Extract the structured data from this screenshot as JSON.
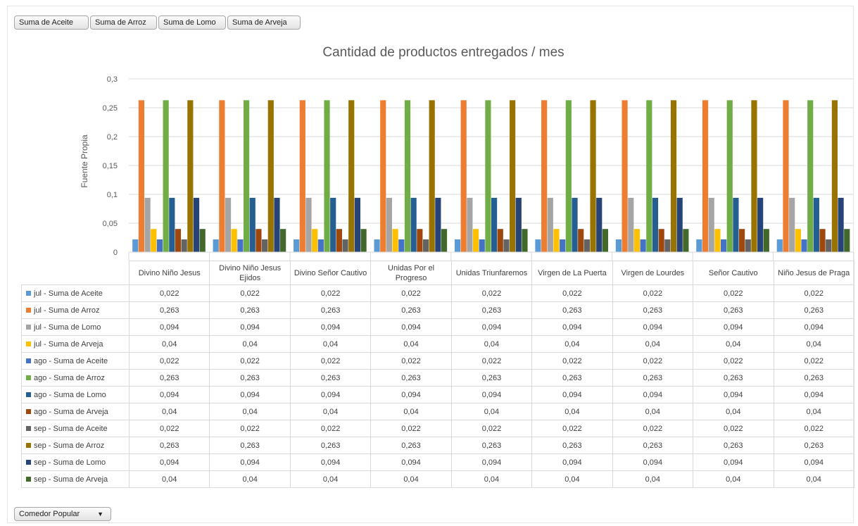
{
  "field_buttons": [
    "Suma de Aceite",
    "Suma de Arroz",
    "Suma de Lomo",
    "Suma de Arveja"
  ],
  "filter": {
    "label": "Comedor Popular",
    "icon": "dropdown-arrow-icon"
  },
  "chart_data": {
    "type": "bar",
    "title": "Cantidad de productos entregados / mes",
    "ylabel": "Fuente Propia",
    "xlabel": "",
    "ylim": [
      0,
      0.3
    ],
    "yticks": [
      "0",
      "0,05",
      "0,1",
      "0,15",
      "0,2",
      "0,25",
      "0,3"
    ],
    "grid": true,
    "legend": "data-table",
    "categories": [
      "Divino Niño Jesus",
      "Divino Niño Jesus Ejidos",
      "Divino Señor Cautivo",
      "Unidas Por el Progreso",
      "Unidas Triunfaremos",
      "Virgen de La Puerta",
      "Virgen de Lourdes",
      "Señor Cautivo",
      "Niño Jesus de Praga"
    ],
    "series": [
      {
        "name": "jul - Suma de Aceite",
        "color": "#5b9bd5",
        "values": [
          0.022,
          0.022,
          0.022,
          0.022,
          0.022,
          0.022,
          0.022,
          0.022,
          0.022
        ],
        "labels": [
          "0,022",
          "0,022",
          "0,022",
          "0,022",
          "0,022",
          "0,022",
          "0,022",
          "0,022",
          "0,022"
        ]
      },
      {
        "name": "jul - Suma de Arroz",
        "color": "#ed7d31",
        "values": [
          0.263,
          0.263,
          0.263,
          0.263,
          0.263,
          0.263,
          0.263,
          0.263,
          0.263
        ],
        "labels": [
          "0,263",
          "0,263",
          "0,263",
          "0,263",
          "0,263",
          "0,263",
          "0,263",
          "0,263",
          "0,263"
        ]
      },
      {
        "name": "jul - Suma de Lomo",
        "color": "#a5a5a5",
        "values": [
          0.094,
          0.094,
          0.094,
          0.094,
          0.094,
          0.094,
          0.094,
          0.094,
          0.094
        ],
        "labels": [
          "0,094",
          "0,094",
          "0,094",
          "0,094",
          "0,094",
          "0,094",
          "0,094",
          "0,094",
          "0,094"
        ]
      },
      {
        "name": "jul - Suma de Arveja",
        "color": "#ffc000",
        "values": [
          0.04,
          0.04,
          0.04,
          0.04,
          0.04,
          0.04,
          0.04,
          0.04,
          0.04
        ],
        "labels": [
          "0,04",
          "0,04",
          "0,04",
          "0,04",
          "0,04",
          "0,04",
          "0,04",
          "0,04",
          "0,04"
        ]
      },
      {
        "name": "ago - Suma de Aceite",
        "color": "#4472c4",
        "values": [
          0.022,
          0.022,
          0.022,
          0.022,
          0.022,
          0.022,
          0.022,
          0.022,
          0.022
        ],
        "labels": [
          "0,022",
          "0,022",
          "0,022",
          "0,022",
          "0,022",
          "0,022",
          "0,022",
          "0,022",
          "0,022"
        ]
      },
      {
        "name": "ago - Suma de Arroz",
        "color": "#70ad47",
        "values": [
          0.263,
          0.263,
          0.263,
          0.263,
          0.263,
          0.263,
          0.263,
          0.263,
          0.263
        ],
        "labels": [
          "0,263",
          "0,263",
          "0,263",
          "0,263",
          "0,263",
          "0,263",
          "0,263",
          "0,263",
          "0,263"
        ]
      },
      {
        "name": "ago - Suma de Lomo",
        "color": "#255e91",
        "values": [
          0.094,
          0.094,
          0.094,
          0.094,
          0.094,
          0.094,
          0.094,
          0.094,
          0.094
        ],
        "labels": [
          "0,094",
          "0,094",
          "0,094",
          "0,094",
          "0,094",
          "0,094",
          "0,094",
          "0,094",
          "0,094"
        ]
      },
      {
        "name": "ago - Suma de Arveja",
        "color": "#9e480e",
        "values": [
          0.04,
          0.04,
          0.04,
          0.04,
          0.04,
          0.04,
          0.04,
          0.04,
          0.04
        ],
        "labels": [
          "0,04",
          "0,04",
          "0,04",
          "0,04",
          "0,04",
          "0,04",
          "0,04",
          "0,04",
          "0,04"
        ]
      },
      {
        "name": "sep - Suma de Aceite",
        "color": "#636363",
        "values": [
          0.022,
          0.022,
          0.022,
          0.022,
          0.022,
          0.022,
          0.022,
          0.022,
          0.022
        ],
        "labels": [
          "0,022",
          "0,022",
          "0,022",
          "0,022",
          "0,022",
          "0,022",
          "0,022",
          "0,022",
          "0,022"
        ]
      },
      {
        "name": "sep - Suma de Arroz",
        "color": "#997300",
        "values": [
          0.263,
          0.263,
          0.263,
          0.263,
          0.263,
          0.263,
          0.263,
          0.263,
          0.263
        ],
        "labels": [
          "0,263",
          "0,263",
          "0,263",
          "0,263",
          "0,263",
          "0,263",
          "0,263",
          "0,263",
          "0,263"
        ]
      },
      {
        "name": "sep - Suma de Lomo",
        "color": "#264478",
        "values": [
          0.094,
          0.094,
          0.094,
          0.094,
          0.094,
          0.094,
          0.094,
          0.094,
          0.094
        ],
        "labels": [
          "0,094",
          "0,094",
          "0,094",
          "0,094",
          "0,094",
          "0,094",
          "0,094",
          "0,094",
          "0,094"
        ]
      },
      {
        "name": "sep - Suma de Arveja",
        "color": "#43682b",
        "values": [
          0.04,
          0.04,
          0.04,
          0.04,
          0.04,
          0.04,
          0.04,
          0.04,
          0.04
        ],
        "labels": [
          "0,04",
          "0,04",
          "0,04",
          "0,04",
          "0,04",
          "0,04",
          "0,04",
          "0,04",
          "0,04"
        ]
      }
    ]
  }
}
